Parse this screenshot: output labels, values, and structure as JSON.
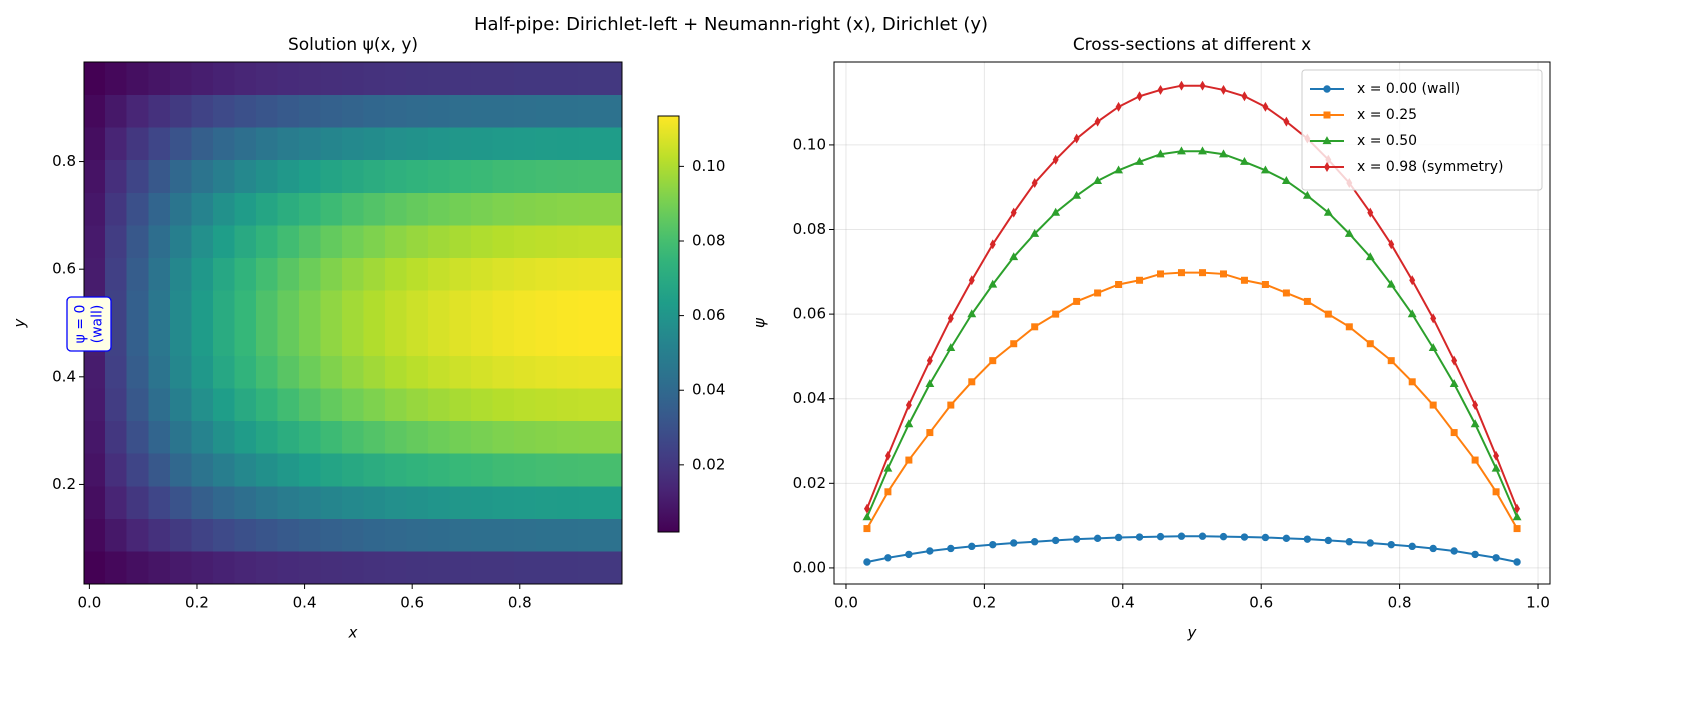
{
  "title": "Half-pipe: Dirichlet-left + Neumann-right (x), Dirichlet (y)",
  "chart_data": [
    {
      "type": "heatmap",
      "title": "Solution ψ(x, y)",
      "xlabel": "x",
      "ylabel": "y",
      "cmap": "viridis",
      "xlim": [
        -0.01,
        0.99
      ],
      "ylim": [
        0.015,
        0.985
      ],
      "xticks": [
        {
          "value": 0,
          "label": "0.0"
        },
        0.2,
        0.4,
        0.6,
        0.8
      ],
      "yticks": [
        0.2,
        0.4,
        0.6,
        0.8
      ],
      "x_edges": [
        -0.01,
        0.03,
        0.07,
        0.11,
        0.15,
        0.19,
        0.23,
        0.27,
        0.31,
        0.35,
        0.39,
        0.43,
        0.47,
        0.51,
        0.55,
        0.59,
        0.63,
        0.67,
        0.71,
        0.75,
        0.79,
        0.83,
        0.87,
        0.91,
        0.95,
        0.99
      ],
      "y_edges": [
        0.015,
        0.076,
        0.136,
        0.197,
        0.258,
        0.318,
        0.379,
        0.439,
        0.5,
        0.561,
        0.621,
        0.682,
        0.742,
        0.803,
        0.864,
        0.924,
        0.985
      ],
      "clim": [
        0.002,
        0.1135
      ],
      "colorbar_ticks": [
        0.02,
        0.04,
        0.06,
        0.08,
        {
          "value": 0.1,
          "label": "0.10"
        }
      ],
      "annotation_lines": [
        "ψ = 0",
        "(wall)"
      ],
      "z": [
        [
          0.002,
          0.0043,
          0.0064,
          0.0083,
          0.0099,
          0.0113,
          0.0125,
          0.0137,
          0.0146,
          0.0155,
          0.0162,
          0.0169,
          0.0175,
          0.018,
          0.0184,
          0.0188,
          0.0191,
          0.0194,
          0.0196,
          0.0198,
          0.02,
          0.0201,
          0.0202,
          0.0203,
          0.0203
        ],
        [
          0.0043,
          0.0093,
          0.0138,
          0.0178,
          0.0213,
          0.0244,
          0.0271,
          0.0295,
          0.0315,
          0.0334,
          0.035,
          0.0365,
          0.0377,
          0.0387,
          0.0397,
          0.0405,
          0.0412,
          0.0418,
          0.0423,
          0.0427,
          0.0431,
          0.0434,
          0.0435,
          0.0437,
          0.0438
        ],
        [
          0.0062,
          0.0135,
          0.0201,
          0.0258,
          0.0309,
          0.0354,
          0.0393,
          0.0427,
          0.0457,
          0.0485,
          0.0508,
          0.0529,
          0.0547,
          0.0562,
          0.0576,
          0.0588,
          0.0598,
          0.0607,
          0.0613,
          0.062,
          0.0625,
          0.0629,
          0.0632,
          0.0634,
          0.0635
        ],
        [
          0.0078,
          0.0171,
          0.0253,
          0.0327,
          0.039,
          0.0447,
          0.0496,
          0.054,
          0.0578,
          0.0612,
          0.0642,
          0.0669,
          0.0691,
          0.071,
          0.0728,
          0.0743,
          0.0755,
          0.0767,
          0.0775,
          0.0784,
          0.079,
          0.0795,
          0.0798,
          0.0801,
          0.0803
        ],
        [
          0.0091,
          0.02,
          0.0296,
          0.0381,
          0.0455,
          0.0522,
          0.058,
          0.063,
          0.0675,
          0.0715,
          0.075,
          0.0781,
          0.0807,
          0.0829,
          0.085,
          0.0867,
          0.0882,
          0.0895,
          0.0905,
          0.0915,
          0.0922,
          0.0928,
          0.0932,
          0.0935,
          0.0937
        ],
        [
          0.0101,
          0.0221,
          0.0327,
          0.0421,
          0.0503,
          0.0577,
          0.064,
          0.0696,
          0.0745,
          0.079,
          0.0828,
          0.0863,
          0.0892,
          0.0916,
          0.0939,
          0.0958,
          0.0974,
          0.0989,
          0.1,
          0.1011,
          0.1019,
          0.1025,
          0.103,
          0.1033,
          0.1035
        ],
        [
          0.0107,
          0.0235,
          0.0348,
          0.0449,
          0.0536,
          0.0614,
          0.0682,
          0.0742,
          0.0794,
          0.0841,
          0.0882,
          0.0919,
          0.095,
          0.0976,
          0.1,
          0.102,
          0.1038,
          0.1053,
          0.1065,
          0.1076,
          0.1085,
          0.1092,
          0.1097,
          0.11,
          0.1102
        ],
        [
          0.0111,
          0.0242,
          0.0359,
          0.0462,
          0.0552,
          0.0632,
          0.0702,
          0.0764,
          0.0818,
          0.0867,
          0.0908,
          0.0946,
          0.0978,
          0.1005,
          0.103,
          0.1051,
          0.1069,
          0.1085,
          0.1097,
          0.1109,
          0.1118,
          0.1124,
          0.1129,
          0.1133,
          0.1135
        ],
        [
          0.0111,
          0.0242,
          0.0359,
          0.0462,
          0.0552,
          0.0632,
          0.0702,
          0.0764,
          0.0818,
          0.0867,
          0.0908,
          0.0946,
          0.0978,
          0.1005,
          0.103,
          0.1051,
          0.1069,
          0.1085,
          0.1097,
          0.1109,
          0.1118,
          0.1124,
          0.1129,
          0.1133,
          0.1135
        ],
        [
          0.0107,
          0.0235,
          0.0348,
          0.0449,
          0.0536,
          0.0614,
          0.0682,
          0.0742,
          0.0794,
          0.0841,
          0.0882,
          0.0919,
          0.095,
          0.0976,
          0.1,
          0.102,
          0.1038,
          0.1053,
          0.1065,
          0.1076,
          0.1085,
          0.1092,
          0.1097,
          0.11,
          0.1102
        ],
        [
          0.0101,
          0.0221,
          0.0327,
          0.0421,
          0.0503,
          0.0577,
          0.064,
          0.0696,
          0.0745,
          0.079,
          0.0828,
          0.0863,
          0.0892,
          0.0916,
          0.0939,
          0.0958,
          0.0974,
          0.0989,
          0.1,
          0.1011,
          0.1019,
          0.1025,
          0.103,
          0.1033,
          0.1035
        ],
        [
          0.0091,
          0.02,
          0.0296,
          0.0381,
          0.0455,
          0.0522,
          0.058,
          0.063,
          0.0675,
          0.0715,
          0.075,
          0.0781,
          0.0807,
          0.0829,
          0.085,
          0.0867,
          0.0882,
          0.0895,
          0.0905,
          0.0915,
          0.0922,
          0.0928,
          0.0932,
          0.0935,
          0.0937
        ],
        [
          0.0078,
          0.0171,
          0.0253,
          0.0327,
          0.039,
          0.0447,
          0.0496,
          0.054,
          0.0578,
          0.0612,
          0.0642,
          0.0669,
          0.0691,
          0.071,
          0.0728,
          0.0743,
          0.0755,
          0.0767,
          0.0775,
          0.0784,
          0.079,
          0.0795,
          0.0798,
          0.0801,
          0.0803
        ],
        [
          0.0062,
          0.0135,
          0.0201,
          0.0258,
          0.0309,
          0.0354,
          0.0393,
          0.0427,
          0.0457,
          0.0485,
          0.0508,
          0.0529,
          0.0547,
          0.0562,
          0.0576,
          0.0588,
          0.0598,
          0.0607,
          0.0613,
          0.062,
          0.0625,
          0.0629,
          0.0632,
          0.0634,
          0.0635
        ],
        [
          0.0043,
          0.0093,
          0.0138,
          0.0178,
          0.0213,
          0.0244,
          0.0271,
          0.0295,
          0.0315,
          0.0334,
          0.035,
          0.0365,
          0.0377,
          0.0387,
          0.0397,
          0.0405,
          0.0412,
          0.0418,
          0.0423,
          0.0427,
          0.0431,
          0.0434,
          0.0435,
          0.0437,
          0.0438
        ],
        [
          0.002,
          0.0043,
          0.0064,
          0.0083,
          0.0099,
          0.0113,
          0.0125,
          0.0137,
          0.0146,
          0.0155,
          0.0162,
          0.0169,
          0.0175,
          0.018,
          0.0184,
          0.0188,
          0.0191,
          0.0194,
          0.0196,
          0.0198,
          0.02,
          0.0201,
          0.0202,
          0.0203,
          0.0203
        ]
      ]
    },
    {
      "type": "line",
      "title": "Cross-sections at different x",
      "xlabel": "y",
      "ylabel": "ψ",
      "grid": true,
      "legend": "upper right",
      "xlim": [
        -0.0173,
        1.0173
      ],
      "ylim": [
        -0.0038,
        0.1196
      ],
      "xticks": [
        {
          "value": 0,
          "label": "0.0"
        },
        0.2,
        0.4,
        0.6,
        0.8,
        {
          "value": 1,
          "label": "1.0"
        }
      ],
      "yticks": [
        {
          "value": 0,
          "label": "0.00"
        },
        {
          "value": 0.02,
          "label": "0.02"
        },
        {
          "value": 0.04,
          "label": "0.04"
        },
        {
          "value": 0.06,
          "label": "0.06"
        },
        {
          "value": 0.08,
          "label": "0.08"
        },
        {
          "value": 0.1,
          "label": "0.10"
        }
      ],
      "x": [
        0.0303,
        0.0606,
        0.0909,
        0.1212,
        0.1515,
        0.1818,
        0.2121,
        0.2424,
        0.2727,
        0.303,
        0.3333,
        0.3636,
        0.3939,
        0.4242,
        0.4545,
        0.4848,
        0.5152,
        0.5455,
        0.5758,
        0.6061,
        0.6364,
        0.6667,
        0.697,
        0.7273,
        0.7576,
        0.7879,
        0.8182,
        0.8485,
        0.8788,
        0.9091,
        0.9394,
        0.9697
      ],
      "series": [
        {
          "name": "x = 0.00 (wall)",
          "color": "#1f77b4",
          "marker": "circle",
          "values": [
            0.0014,
            0.0024,
            0.0032,
            0.004,
            0.0046,
            0.0051,
            0.0055,
            0.0059,
            0.0062,
            0.0065,
            0.0068,
            0.007,
            0.0072,
            0.0073,
            0.0074,
            0.0075,
            0.0075,
            0.0074,
            0.0073,
            0.0072,
            0.007,
            0.0068,
            0.0065,
            0.0062,
            0.0059,
            0.0055,
            0.0051,
            0.0046,
            0.004,
            0.0032,
            0.0024,
            0.0014
          ]
        },
        {
          "name": "x = 0.25",
          "color": "#ff7f0e",
          "marker": "square",
          "values": [
            0.0093,
            0.018,
            0.0255,
            0.032,
            0.0385,
            0.044,
            0.049,
            0.053,
            0.057,
            0.06,
            0.063,
            0.065,
            0.067,
            0.068,
            0.0695,
            0.0698,
            0.0698,
            0.0695,
            0.068,
            0.067,
            0.065,
            0.063,
            0.06,
            0.057,
            0.053,
            0.049,
            0.044,
            0.0385,
            0.032,
            0.0255,
            0.018,
            0.0093
          ]
        },
        {
          "name": "x = 0.50",
          "color": "#2ca02c",
          "marker": "triangle",
          "values": [
            0.012,
            0.0235,
            0.034,
            0.0435,
            0.052,
            0.06,
            0.067,
            0.0735,
            0.079,
            0.084,
            0.088,
            0.0915,
            0.094,
            0.096,
            0.0978,
            0.0985,
            0.0985,
            0.0978,
            0.096,
            0.094,
            0.0915,
            0.088,
            0.084,
            0.079,
            0.0735,
            0.067,
            0.06,
            0.052,
            0.0435,
            0.034,
            0.0235,
            0.012
          ]
        },
        {
          "name": "x = 0.98 (symmetry)",
          "color": "#d62728",
          "marker": "diamond",
          "values": [
            0.014,
            0.0265,
            0.0385,
            0.049,
            0.059,
            0.068,
            0.0765,
            0.084,
            0.091,
            0.0965,
            0.1015,
            0.1055,
            0.109,
            0.1115,
            0.113,
            0.114,
            0.114,
            0.113,
            0.1115,
            0.109,
            0.1055,
            0.1015,
            0.0965,
            0.091,
            0.084,
            0.0765,
            0.068,
            0.059,
            0.049,
            0.0385,
            0.0265,
            0.014
          ]
        }
      ]
    }
  ]
}
